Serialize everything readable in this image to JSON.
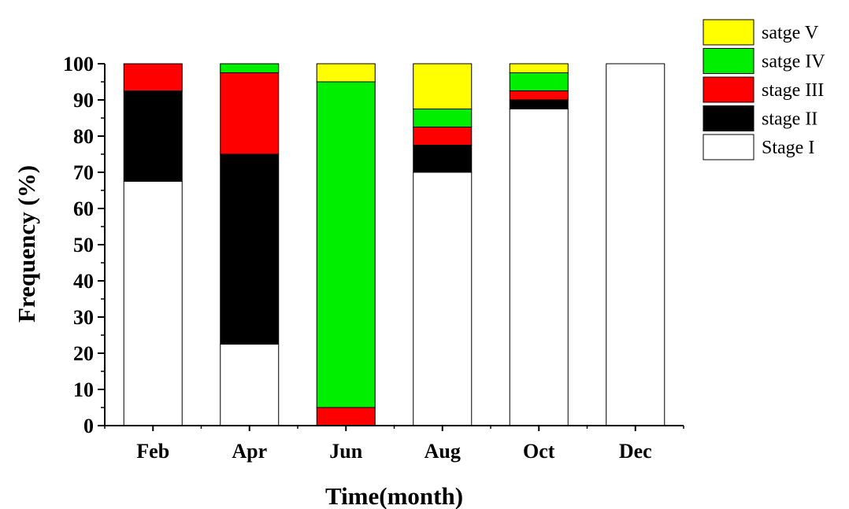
{
  "chart_data": {
    "type": "bar",
    "stacked": true,
    "title": "",
    "xlabel": "Time(month)",
    "ylabel": "Frequency (%)",
    "ylim": [
      0,
      100
    ],
    "yticks": [
      "0",
      "10",
      "20",
      "30",
      "40",
      "50",
      "60",
      "70",
      "80",
      "90",
      "100"
    ],
    "categories": [
      "Feb",
      "Apr",
      "Jun",
      "Aug",
      "Oct",
      "Dec"
    ],
    "series": [
      {
        "name": "Stage I",
        "color": "#ffffff",
        "values": [
          67.5,
          22.5,
          0,
          70,
          87.5,
          100
        ]
      },
      {
        "name": "stage II",
        "color": "#000000",
        "values": [
          25,
          52.5,
          0,
          7.5,
          2.5,
          0
        ]
      },
      {
        "name": "stage III",
        "color": "#ff0000",
        "values": [
          7.5,
          22.5,
          5,
          5,
          2.5,
          0
        ]
      },
      {
        "name": "satge IV",
        "color": "#00ee00",
        "values": [
          0,
          2.5,
          90,
          5,
          5,
          0
        ]
      },
      {
        "name": "satge V",
        "color": "#ffff00",
        "values": [
          0,
          0,
          5,
          12.5,
          2.5,
          0
        ]
      }
    ],
    "legend_order": [
      "satge V",
      "satge IV",
      "stage III",
      "stage II",
      "Stage I"
    ],
    "legend_position": "top-right",
    "grid": false
  }
}
